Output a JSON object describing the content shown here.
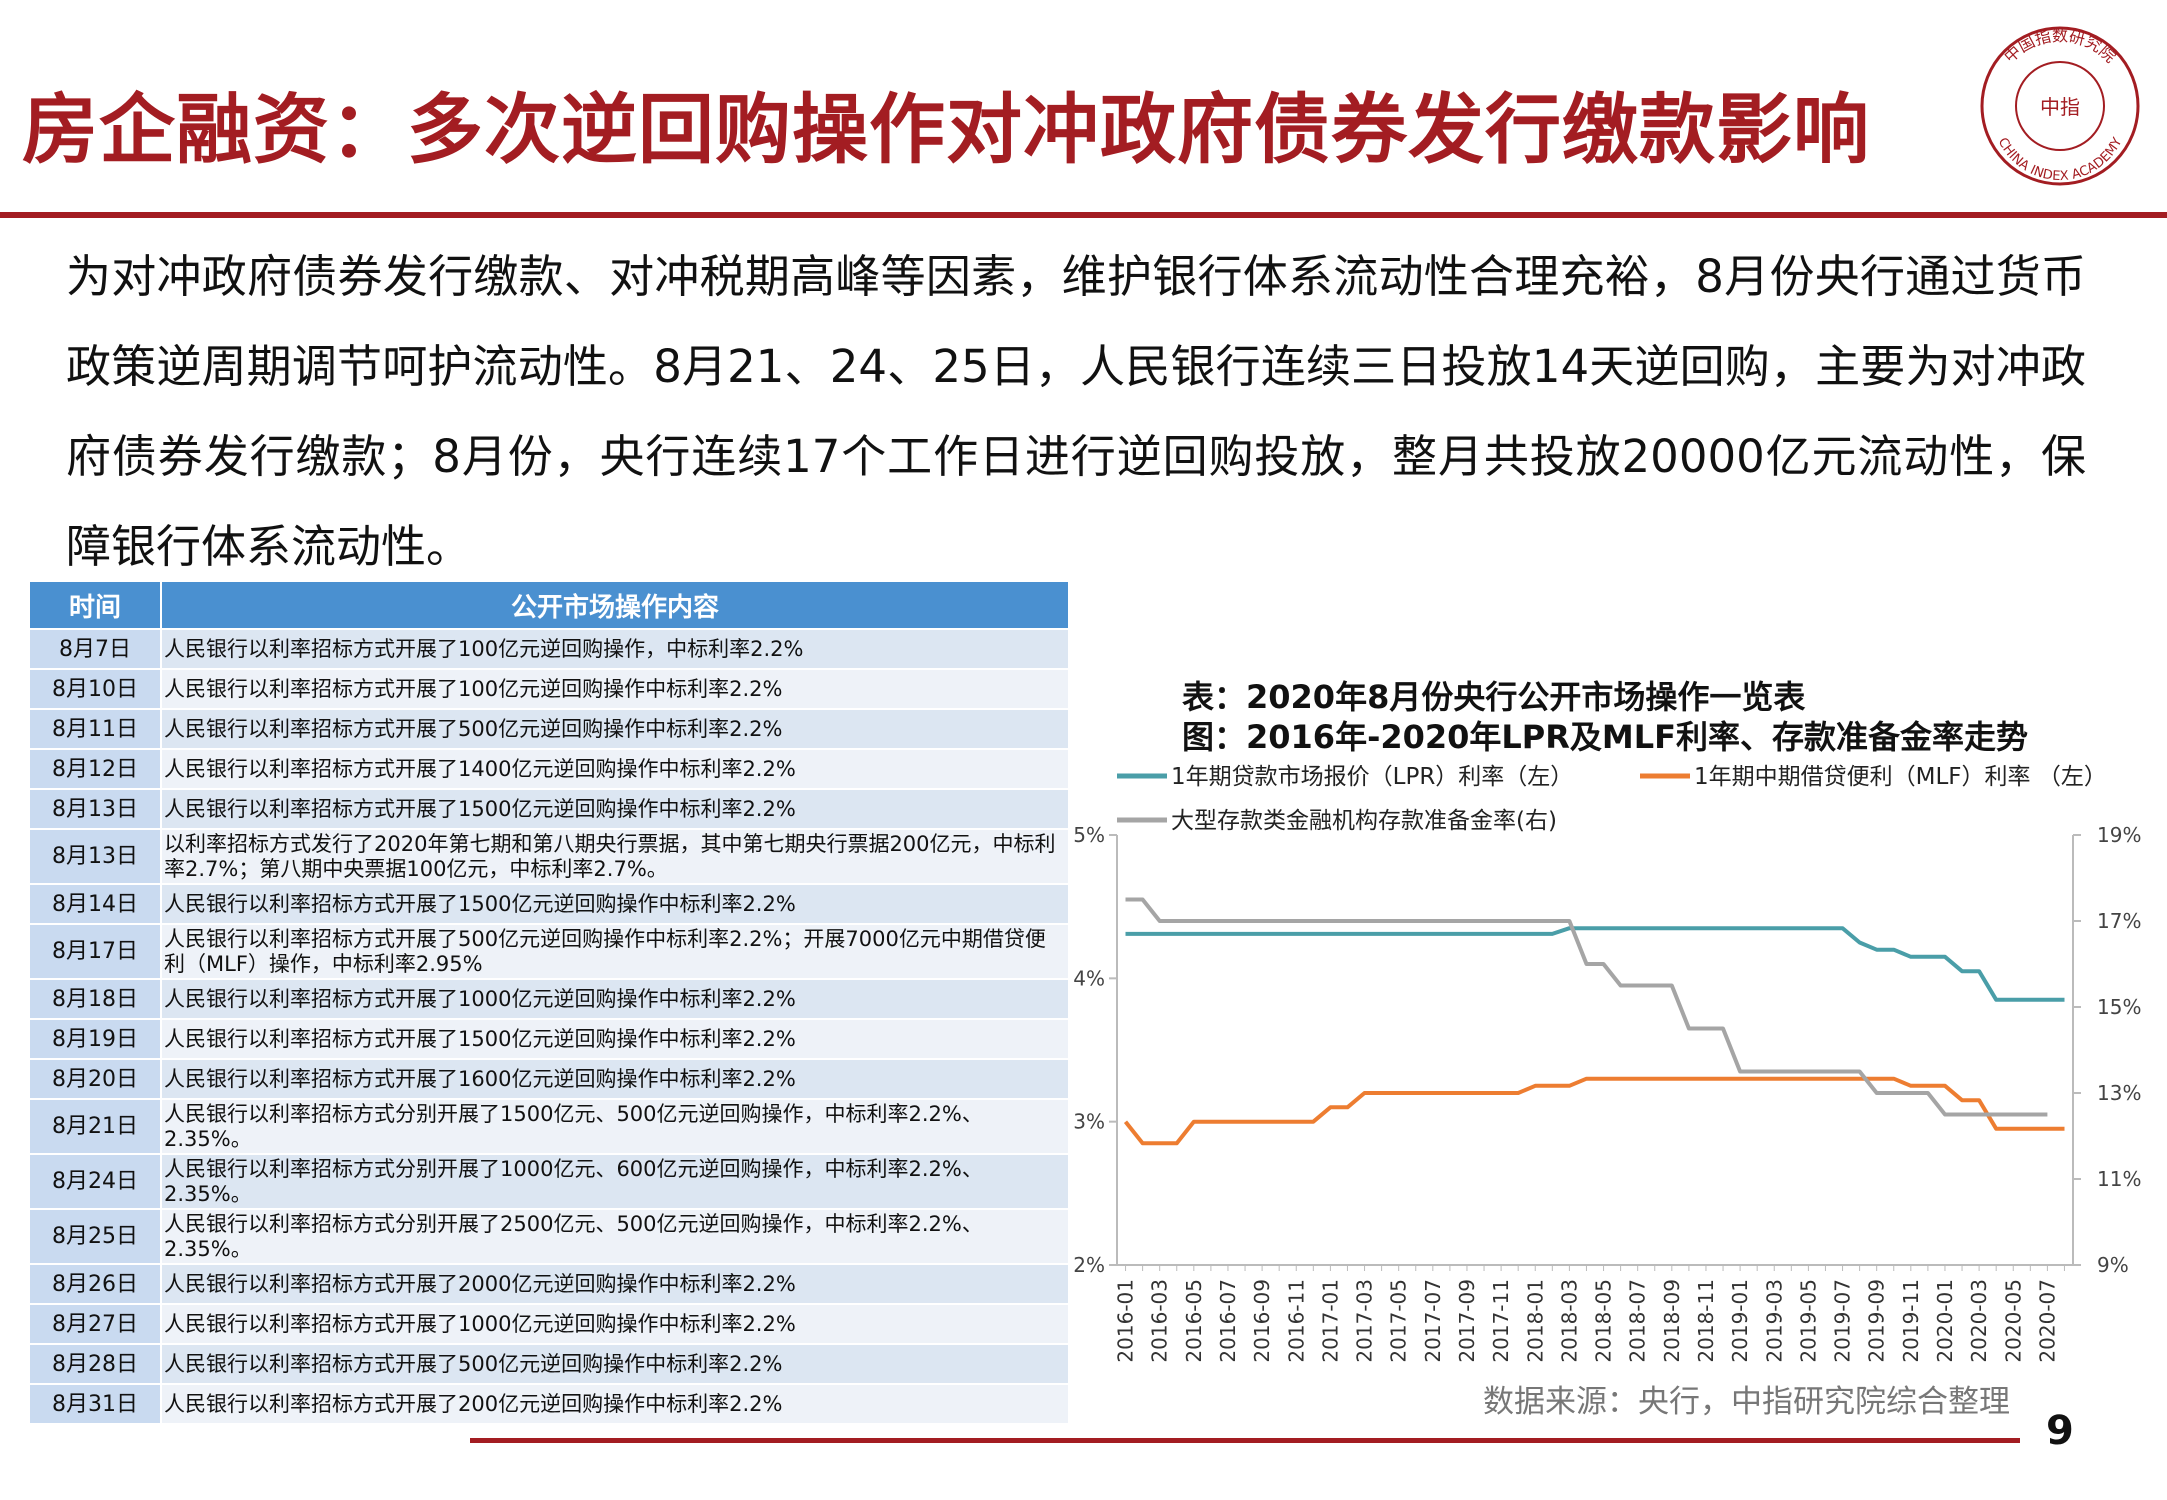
{
  "header": {
    "title": "房企融资：多次逆回购操作对冲政府债券发行缴款影响",
    "logo_top": "中国指数研究院",
    "logo_center": "中指",
    "logo_bottom": "CHINA INDEX ACADEMY"
  },
  "paragraph": "为对冲政府债券发行缴款、对冲税期高峰等因素，维护银行体系流动性合理充裕，8月份央行通过货币政策逆周期调节呵护流动性。8月21、24、25日，人民银行连续三日投放14天逆回购，主要为对冲政府债券发行缴款；8月份，央行连续17个工作日进行逆回购投放，整月共投放20000亿元流动性，保障银行体系流动性。",
  "table": {
    "headers": [
      "时间",
      "公开市场操作内容"
    ],
    "rows": [
      [
        "8月7日",
        "人民银行以利率招标方式开展了100亿元逆回购操作，中标利率2.2%"
      ],
      [
        "8月10日",
        "人民银行以利率招标方式开展了100亿元逆回购操作中标利率2.2%"
      ],
      [
        "8月11日",
        "人民银行以利率招标方式开展了500亿元逆回购操作中标利率2.2%"
      ],
      [
        "8月12日",
        "人民银行以利率招标方式开展了1400亿元逆回购操作中标利率2.2%"
      ],
      [
        "8月13日",
        "人民银行以利率招标方式开展了1500亿元逆回购操作中标利率2.2%"
      ],
      [
        "8月13日",
        "以利率招标方式发行了2020年第七期和第八期央行票据，其中第七期央行票据200亿元，中标利率2.7%；第八期中央票据100亿元，中标利率2.7%。"
      ],
      [
        "8月14日",
        "人民银行以利率招标方式开展了1500亿元逆回购操作中标利率2.2%"
      ],
      [
        "8月17日",
        "人民银行以利率招标方式开展了500亿元逆回购操作中标利率2.2%；开展7000亿元中期借贷便利（MLF）操作，中标利率2.95%"
      ],
      [
        "8月18日",
        "人民银行以利率招标方式开展了1000亿元逆回购操作中标利率2.2%"
      ],
      [
        "8月19日",
        "人民银行以利率招标方式开展了1500亿元逆回购操作中标利率2.2%"
      ],
      [
        "8月20日",
        "人民银行以利率招标方式开展了1600亿元逆回购操作中标利率2.2%"
      ],
      [
        "8月21日",
        "人民银行以利率招标方式分别开展了1500亿元、500亿元逆回购操作，中标利率2.2%、2.35%。"
      ],
      [
        "8月24日",
        "人民银行以利率招标方式分别开展了1000亿元、600亿元逆回购操作，中标利率2.2%、2.35%。"
      ],
      [
        "8月25日",
        "人民银行以利率招标方式分别开展了2500亿元、500亿元逆回购操作，中标利率2.2%、2.35%。"
      ],
      [
        "8月26日",
        "人民银行以利率招标方式开展了2000亿元逆回购操作中标利率2.2%"
      ],
      [
        "8月27日",
        "人民银行以利率招标方式开展了1000亿元逆回购操作中标利率2.2%"
      ],
      [
        "8月28日",
        "人民银行以利率招标方式开展了500亿元逆回购操作中标利率2.2%"
      ],
      [
        "8月31日",
        "人民银行以利率招标方式开展了200亿元逆回购操作中标利率2.2%"
      ]
    ]
  },
  "chart_data": {
    "type": "line",
    "title": "表：2020年8月份央行公开市场操作一览表",
    "subtitle": "图：2016年-2020年LPR及MLF利率、存款准备金率走势",
    "categories": [
      "2016-01",
      null,
      "2016-03",
      null,
      "2016-05",
      null,
      "2016-07",
      null,
      "2016-09",
      null,
      "2016-11",
      null,
      "2017-01",
      null,
      "2017-03",
      null,
      "2017-05",
      null,
      "2017-07",
      null,
      "2017-09",
      null,
      "2017-11",
      null,
      "2018-01",
      null,
      "2018-03",
      null,
      "2018-05",
      null,
      "2018-07",
      null,
      "2018-09",
      null,
      "2018-11",
      null,
      "2019-01",
      null,
      "2019-03",
      null,
      "2019-05",
      null,
      "2019-07",
      null,
      "2019-09",
      null,
      "2019-11",
      null,
      "2020-01",
      null,
      "2020-03",
      null,
      "2020-05",
      null,
      "2020-07",
      null
    ],
    "series": [
      {
        "name": "1年期贷款市场报价（LPR）利率（左）",
        "color": "#4a9ea8",
        "values": [
          4.31,
          4.31,
          4.31,
          4.31,
          4.31,
          4.31,
          4.31,
          4.31,
          4.31,
          4.31,
          4.31,
          4.31,
          4.31,
          4.31,
          4.31,
          4.31,
          4.31,
          4.31,
          4.31,
          4.31,
          4.31,
          4.31,
          4.31,
          4.31,
          4.31,
          4.31,
          4.35,
          4.35,
          4.35,
          4.35,
          4.35,
          4.35,
          4.35,
          4.35,
          4.35,
          4.35,
          4.35,
          4.35,
          4.35,
          4.35,
          4.35,
          4.35,
          4.35,
          4.25,
          4.2,
          4.2,
          4.15,
          4.15,
          4.15,
          4.05,
          4.05,
          3.85,
          3.85,
          3.85,
          3.85,
          3.85
        ]
      },
      {
        "name": "1年期中期借贷便利（MLF）利率  （左）",
        "color": "#ed7d31",
        "values": [
          3.0,
          2.85,
          2.85,
          2.85,
          3.0,
          3.0,
          3.0,
          3.0,
          3.0,
          3.0,
          3.0,
          3.0,
          3.1,
          3.1,
          3.2,
          3.2,
          3.2,
          3.2,
          3.2,
          3.2,
          3.2,
          3.2,
          3.2,
          3.2,
          3.25,
          3.25,
          3.25,
          3.3,
          3.3,
          3.3,
          3.3,
          3.3,
          3.3,
          3.3,
          3.3,
          3.3,
          3.3,
          3.3,
          3.3,
          3.3,
          3.3,
          3.3,
          3.3,
          3.3,
          3.3,
          3.3,
          3.25,
          3.25,
          3.25,
          3.15,
          3.15,
          2.95,
          2.95,
          2.95,
          2.95,
          2.95
        ]
      },
      {
        "name": "大型存款类金融机构存款准备金率(右)",
        "color": "#a5a5a5",
        "axis": "y2",
        "values": [
          17.5,
          17.5,
          17,
          17,
          17,
          17,
          17,
          17,
          17,
          17,
          17,
          17,
          17,
          17,
          17,
          17,
          17,
          17,
          17,
          17,
          17,
          17,
          17,
          17,
          17,
          17,
          17,
          16,
          16,
          15.5,
          15.5,
          15.5,
          15.5,
          14.5,
          14.5,
          14.5,
          13.5,
          13.5,
          13.5,
          13.5,
          13.5,
          13.5,
          13.5,
          13.5,
          13,
          13,
          13,
          13,
          12.5,
          12.5,
          12.5,
          12.5,
          12.5,
          12.5,
          12.5,
          null
        ]
      }
    ],
    "ylim": [
      2,
      5
    ],
    "yticks": [
      {
        "value": 2,
        "label": "2%"
      },
      {
        "value": 3,
        "label": "3%"
      },
      {
        "value": 4,
        "label": "4%"
      },
      {
        "value": 5,
        "label": "5%"
      }
    ],
    "y2lim": [
      9,
      19
    ],
    "y2ticks": [
      {
        "value": 9,
        "label": "9%"
      },
      {
        "value": 11,
        "label": "11%"
      },
      {
        "value": 13,
        "label": "13%"
      },
      {
        "value": 15,
        "label": "15%"
      },
      {
        "value": 17,
        "label": "17%"
      },
      {
        "value": 19,
        "label": "19%"
      }
    ],
    "source": "数据来源：央行，中指研究院综合整理"
  },
  "page_number": "9"
}
